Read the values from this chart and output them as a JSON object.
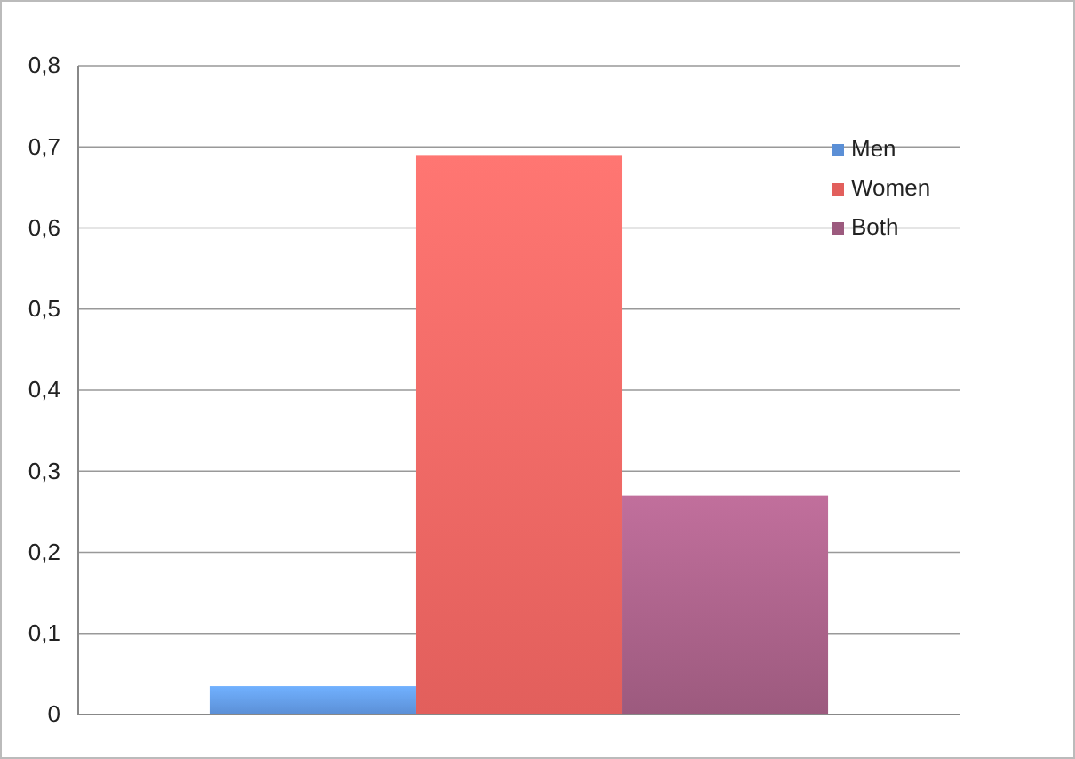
{
  "chart_data": {
    "type": "bar",
    "categories": [
      null
    ],
    "series": [
      {
        "name": "Men",
        "color": "#5b8fd6",
        "values": [
          0.035
        ]
      },
      {
        "name": "Women",
        "color": "#e25f5c",
        "values": [
          0.69
        ]
      },
      {
        "name": "Both",
        "color": "#9c5a7e",
        "values": [
          0.27
        ]
      }
    ],
    "ylim": [
      0,
      0.8
    ],
    "yticks": [
      0,
      {
        "value": 0.1,
        "label": "0,1"
      },
      {
        "value": 0.2,
        "label": "0,2"
      },
      {
        "value": 0.3,
        "label": "0,3"
      },
      {
        "value": 0.4,
        "label": "0,4"
      },
      {
        "value": 0.5,
        "label": "0,5"
      },
      {
        "value": 0.6,
        "label": "0,6"
      },
      {
        "value": 0.7,
        "label": "0,7"
      },
      {
        "value": 0.8,
        "label": "0,8"
      }
    ],
    "grid": "y",
    "legend": "top right"
  }
}
